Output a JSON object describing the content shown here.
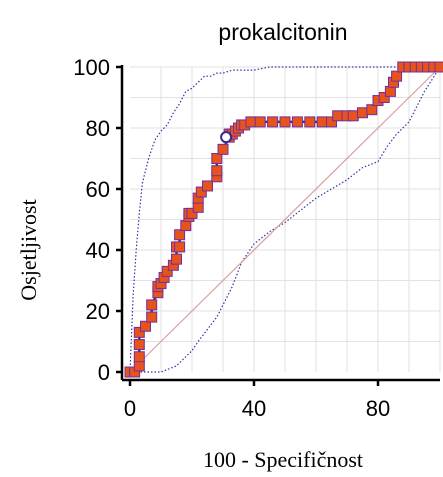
{
  "chart_data": {
    "type": "line",
    "title": "prokalcitonin",
    "xlabel": "100 - Specifičnost",
    "ylabel": "Osjetljivost",
    "xlim": [
      0,
      100
    ],
    "ylim": [
      0,
      100
    ],
    "xticks": [
      0,
      40,
      80
    ],
    "yticks": [
      0,
      20,
      40,
      60,
      80,
      100
    ],
    "grid": true,
    "series": [
      {
        "role": "roc-curve",
        "color": "#e8521b",
        "marker_edge": "#7030a0",
        "line_color": "#3b2a8a",
        "x": [
          0,
          1.5,
          3,
          3,
          3,
          3,
          5,
          7,
          7,
          9,
          9,
          10,
          11,
          12,
          14,
          15,
          15,
          16,
          16,
          18,
          19,
          19,
          20,
          22,
          22,
          23,
          25,
          28,
          28,
          28,
          30,
          32,
          32,
          33,
          34,
          35,
          36,
          37,
          39,
          42,
          46,
          50,
          54,
          58,
          62,
          65,
          67,
          70,
          72,
          75,
          78,
          80,
          82,
          84,
          85,
          86,
          88,
          90,
          92,
          94,
          96,
          98,
          100
        ],
        "y": [
          0,
          0,
          2,
          5,
          9,
          13,
          15,
          18,
          22,
          26,
          28,
          29,
          31,
          33,
          35,
          37,
          41,
          41,
          45,
          48,
          51,
          52,
          52,
          54,
          57,
          59,
          61,
          64,
          66,
          70,
          73,
          77,
          78,
          78,
          79,
          80,
          81,
          81,
          82,
          82,
          82,
          82,
          82,
          82,
          82,
          82,
          84,
          84,
          84,
          85,
          86,
          89,
          90,
          92,
          95,
          97,
          100,
          100,
          100,
          100,
          100,
          100,
          100
        ]
      },
      {
        "role": "upper-confidence-bound",
        "color": "#3333aa",
        "x": [
          0,
          1,
          2,
          3,
          4,
          6,
          8,
          10,
          12,
          14,
          16,
          18,
          20,
          22,
          24,
          26,
          28,
          30,
          33,
          36,
          40,
          45,
          50,
          55,
          60,
          65,
          70,
          75,
          80,
          85,
          90,
          95,
          100
        ],
        "y": [
          0,
          25,
          40,
          52,
          62,
          70,
          76,
          79,
          81,
          85,
          88,
          92,
          93,
          95,
          97,
          97,
          98,
          98,
          99,
          99,
          99,
          100,
          100,
          100,
          100,
          100,
          100,
          100,
          100,
          100,
          100,
          100,
          100
        ]
      },
      {
        "role": "lower-confidence-bound",
        "color": "#3333aa",
        "x": [
          0,
          5,
          10,
          15,
          20,
          22,
          25,
          28,
          30,
          33,
          36,
          40,
          45,
          50,
          55,
          60,
          65,
          70,
          75,
          80,
          83,
          86,
          90,
          95,
          100
        ],
        "y": [
          0,
          0,
          0,
          2,
          7,
          10,
          14,
          18,
          22,
          28,
          36,
          42,
          46,
          49,
          53,
          57,
          60,
          63,
          67,
          69,
          74,
          78,
          82,
          92,
          100
        ]
      },
      {
        "role": "reference-diagonal",
        "color": "#d9a0a0",
        "x": [
          0,
          100
        ],
        "y": [
          0,
          100
        ]
      }
    ],
    "highlight_point": {
      "x": 31,
      "y": 77
    }
  }
}
